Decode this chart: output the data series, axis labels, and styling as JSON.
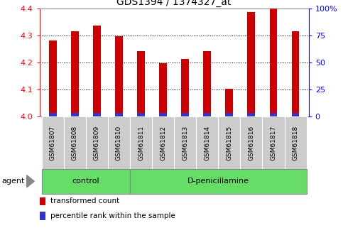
{
  "title": "GDS1394 / 1374327_at",
  "samples": [
    "GSM61807",
    "GSM61808",
    "GSM61809",
    "GSM61810",
    "GSM61811",
    "GSM61812",
    "GSM61813",
    "GSM61814",
    "GSM61815",
    "GSM61816",
    "GSM61817",
    "GSM61818"
  ],
  "red_values": [
    4.27,
    4.305,
    4.325,
    4.285,
    4.23,
    4.185,
    4.2,
    4.23,
    4.09,
    4.375,
    4.39,
    4.305
  ],
  "blue_values": [
    0.012,
    0.012,
    0.012,
    0.012,
    0.012,
    0.012,
    0.012,
    0.012,
    0.012,
    0.012,
    0.012,
    0.012
  ],
  "base": 4.0,
  "ylim_left": [
    4.0,
    4.4
  ],
  "yticks_left": [
    4.0,
    4.1,
    4.2,
    4.3,
    4.4
  ],
  "ytick_labels_right": [
    "0",
    "25",
    "50",
    "75",
    "100%"
  ],
  "red_color": "#cc0000",
  "blue_color": "#3333cc",
  "bar_width": 0.35,
  "groups": [
    {
      "label": "control",
      "start": 0,
      "end": 4
    },
    {
      "label": "D-penicillamine",
      "start": 4,
      "end": 12
    }
  ],
  "group_color": "#66dd66",
  "tick_area_color": "#cccccc",
  "legend_items": [
    {
      "label": "transformed count",
      "color": "#cc0000"
    },
    {
      "label": "percentile rank within the sample",
      "color": "#3333cc"
    }
  ],
  "agent_label": "agent"
}
